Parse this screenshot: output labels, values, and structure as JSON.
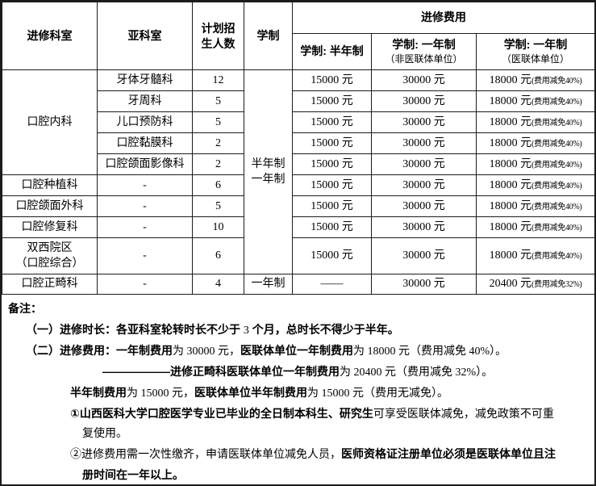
{
  "colors": {
    "border": "#1c1c1c",
    "background": "#ffffff",
    "text": "#000000"
  },
  "table": {
    "header": {
      "department": "进修科室",
      "subdepartment": "亚科室",
      "quota_line1": "计划招",
      "quota_line2": "生人数",
      "schedule": "学制",
      "fee_group": "进修费用",
      "fee_half": "学制: 半年制",
      "fee_year_line1": "学制: 一年制",
      "fee_year_line2": "（非医联体单位）",
      "fee_union_line1": "学制: 一年制",
      "fee_union_line2": "（医联体单位）"
    },
    "schedule_merged_line1": "半年制",
    "schedule_merged_line2": "一年制",
    "rows": [
      {
        "dept": "口腔内科",
        "sub": "牙体牙髓科",
        "quota": "12",
        "fee_half": "15000 元",
        "fee_year": "30000 元",
        "fee_union": "18000 元",
        "fee_union_small": "(费用减免40%)"
      },
      {
        "sub": "牙周科",
        "quota": "5",
        "fee_half": "15000 元",
        "fee_year": "30000 元",
        "fee_union": "18000 元",
        "fee_union_small": "(费用减免40%)"
      },
      {
        "sub": "儿口预防科",
        "quota": "5",
        "fee_half": "15000 元",
        "fee_year": "30000 元",
        "fee_union": "18000 元",
        "fee_union_small": "(费用减免40%)"
      },
      {
        "sub": "口腔黏膜科",
        "quota": "2",
        "fee_half": "15000 元",
        "fee_year": "30000 元",
        "fee_union": "18000 元",
        "fee_union_small": "(费用减免40%)"
      },
      {
        "sub": "口腔颌面影像科",
        "quota": "2",
        "fee_half": "15000 元",
        "fee_year": "30000 元",
        "fee_union": "18000 元",
        "fee_union_small": "(费用减免40%)"
      },
      {
        "dept": "口腔种植科",
        "sub": "-",
        "quota": "6",
        "fee_half": "15000 元",
        "fee_year": "30000 元",
        "fee_union": "18000 元",
        "fee_union_small": "(费用减免40%)"
      },
      {
        "dept": "口腔颌面外科",
        "sub": "-",
        "quota": "5",
        "fee_half": "15000 元",
        "fee_year": "30000 元",
        "fee_union": "18000 元",
        "fee_union_small": "(费用减免40%)"
      },
      {
        "dept": "口腔修复科",
        "sub": "-",
        "quota": "10",
        "fee_half": "15000 元",
        "fee_year": "30000 元",
        "fee_union": "18000 元",
        "fee_union_small": "(费用减免40%)"
      },
      {
        "dept_line1": "双西院区",
        "dept_line2": "（口腔综合）",
        "sub": "-",
        "quota": "6",
        "fee_half": "15000 元",
        "fee_year": "30000 元",
        "fee_union": "18000 元",
        "fee_union_small": "(费用减免40%)"
      },
      {
        "dept": "口腔正畸科",
        "sub": "-",
        "quota": "4",
        "schedule": "一年制",
        "fee_half": "——",
        "fee_year": "30000 元",
        "fee_union": "20400 元",
        "fee_union_small": "(费用减免32%)"
      }
    ]
  },
  "notes": {
    "lines": [
      {
        "indent": 8,
        "segments": [
          {
            "style": "b",
            "text": "备注："
          }
        ]
      },
      {
        "indent": 30,
        "segments": [
          {
            "style": "b",
            "text": "（一）进修时长：各亚科室轮转时长不少于 "
          },
          {
            "style": "r",
            "text": "3"
          },
          {
            "style": "b",
            "text": " 个月，总时长不得少于半年。"
          }
        ]
      },
      {
        "indent": 30,
        "segments": [
          {
            "style": "b",
            "text": "（二）进修费用：一年制费用"
          },
          {
            "style": "r",
            "text": "为 30000 元，"
          },
          {
            "style": "b",
            "text": "医联体单位一年制费用"
          },
          {
            "style": "r",
            "text": "为 18000 元（费用减免 40%）。"
          }
        ]
      },
      {
        "indent": 125,
        "segments": [
          {
            "style": "b",
            "text": "——————进修正畸科医联体单位一年制费用"
          },
          {
            "style": "r",
            "text": "为 20400 元（费用减免 32%）。"
          }
        ]
      },
      {
        "indent": 85,
        "segments": [
          {
            "style": "b",
            "text": "半年制费用"
          },
          {
            "style": "r",
            "text": "为 15000 元，"
          },
          {
            "style": "b",
            "text": "医联体单位半年制费用"
          },
          {
            "style": "r",
            "text": "为 15000 元（费用无减免）。"
          }
        ]
      },
      {
        "indent": 85,
        "segments": [
          {
            "style": "b",
            "text": "①山西医科大学口腔医学专业已毕业的全日制本科生、研究生"
          },
          {
            "style": "r",
            "text": "可享受医联体减免，减免政策不可重"
          }
        ]
      },
      {
        "indent": 100,
        "segments": [
          {
            "style": "r",
            "text": "复使用。"
          }
        ]
      },
      {
        "indent": 85,
        "segments": [
          {
            "style": "r",
            "text": "②进修费用需一次性缴齐，申请医联体单位减免人员，"
          },
          {
            "style": "b",
            "text": "医师资格证注册单位必须是医联体单位且注"
          }
        ]
      },
      {
        "indent": 100,
        "segments": [
          {
            "style": "b",
            "text": "册时间在一年以上。"
          }
        ]
      }
    ]
  }
}
